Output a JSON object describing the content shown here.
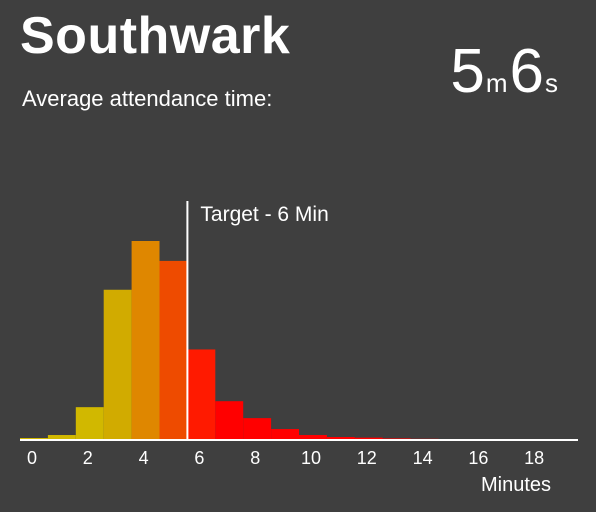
{
  "header": {
    "title": "Southwark",
    "subtitle": "Average attendance time:",
    "minutes_value": "5",
    "minutes_unit": "m",
    "seconds_value": "6",
    "seconds_unit": "s"
  },
  "chart_data": {
    "type": "bar",
    "title": "",
    "xlabel": "Minutes",
    "ylabel": "",
    "xlim": [
      0,
      20
    ],
    "ylim": [
      0,
      100
    ],
    "bin_width": 1,
    "x": [
      0,
      1,
      2,
      3,
      4,
      5,
      6,
      7,
      8,
      9,
      10,
      11,
      12,
      13,
      14,
      15
    ],
    "values": [
      1.0,
      2.5,
      16.5,
      75.5,
      100,
      90,
      45.5,
      19.5,
      11,
      5.5,
      2.5,
      1.5,
      1.2,
      0.8,
      0.6,
      0.4
    ],
    "colors": [
      "#d1b800",
      "#d1b800",
      "#d1b800",
      "#d1ab00",
      "#df8700",
      "#ee4b00",
      "#ff1a00",
      "#ff0000",
      "#ff0000",
      "#ff0000",
      "#ff0000",
      "#ff0000",
      "#ff0000",
      "#ff0000",
      "#ff0000",
      "#ff0000"
    ],
    "x_ticks": [
      "0",
      "2",
      "4",
      "6",
      "8",
      "10",
      "12",
      "14",
      "16",
      "18"
    ],
    "target": {
      "value": 6,
      "label": "Target - 6 Min"
    }
  }
}
